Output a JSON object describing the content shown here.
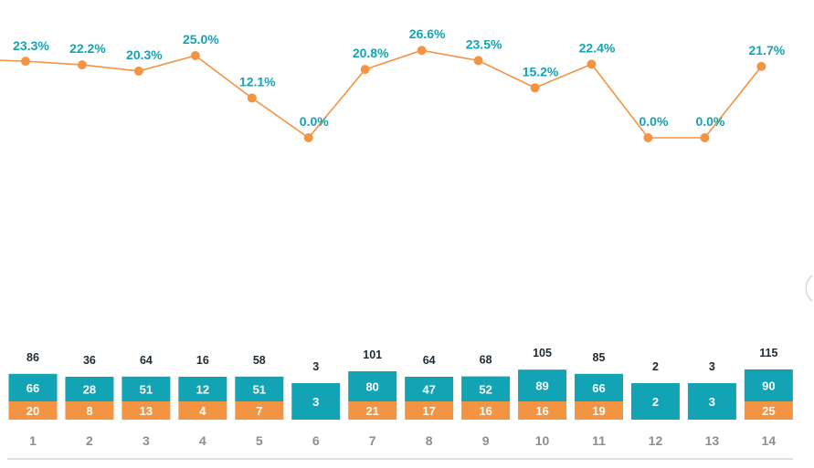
{
  "colors": {
    "teal": "#12A3B4",
    "orange": "#F39443",
    "dark_text": "#1f2a33",
    "axis_text": "#8a8f93",
    "axis_line": "#c9cdd0",
    "white": "#ffffff"
  },
  "chart_data": [
    {
      "type": "line",
      "categories": [
        "1",
        "2",
        "3",
        "4",
        "5",
        "6",
        "7",
        "8",
        "9",
        "10",
        "11",
        "12",
        "13",
        "14"
      ],
      "series": [
        {
          "values": [
            23.3,
            22.2,
            20.3,
            25.0,
            12.1,
            0.0,
            20.8,
            26.6,
            23.5,
            15.2,
            22.4,
            0.0,
            0.0,
            21.7
          ],
          "labels": [
            "23.3%",
            "22.2%",
            "20.3%",
            "25.0%",
            "12.1%",
            "0.0%",
            "20.8%",
            "26.6%",
            "23.5%",
            "15.2%",
            "22.4%",
            "0.0%",
            "0.0%",
            "21.7%"
          ]
        }
      ],
      "ylim": [
        0,
        30
      ],
      "grid": false
    },
    {
      "type": "bar",
      "stacked": true,
      "categories": [
        "1",
        "2",
        "3",
        "4",
        "5",
        "6",
        "7",
        "8",
        "9",
        "10",
        "11",
        "12",
        "13",
        "14"
      ],
      "series": [
        {
          "values": [
            66,
            28,
            51,
            12,
            51,
            3,
            80,
            47,
            52,
            89,
            66,
            2,
            3,
            90
          ]
        },
        {
          "values": [
            20,
            8,
            13,
            4,
            7,
            0,
            21,
            17,
            16,
            16,
            19,
            0,
            0,
            25
          ]
        }
      ],
      "totals": [
        86,
        36,
        64,
        16,
        58,
        3,
        101,
        64,
        68,
        105,
        85,
        2,
        3,
        115
      ],
      "grid": false
    }
  ]
}
